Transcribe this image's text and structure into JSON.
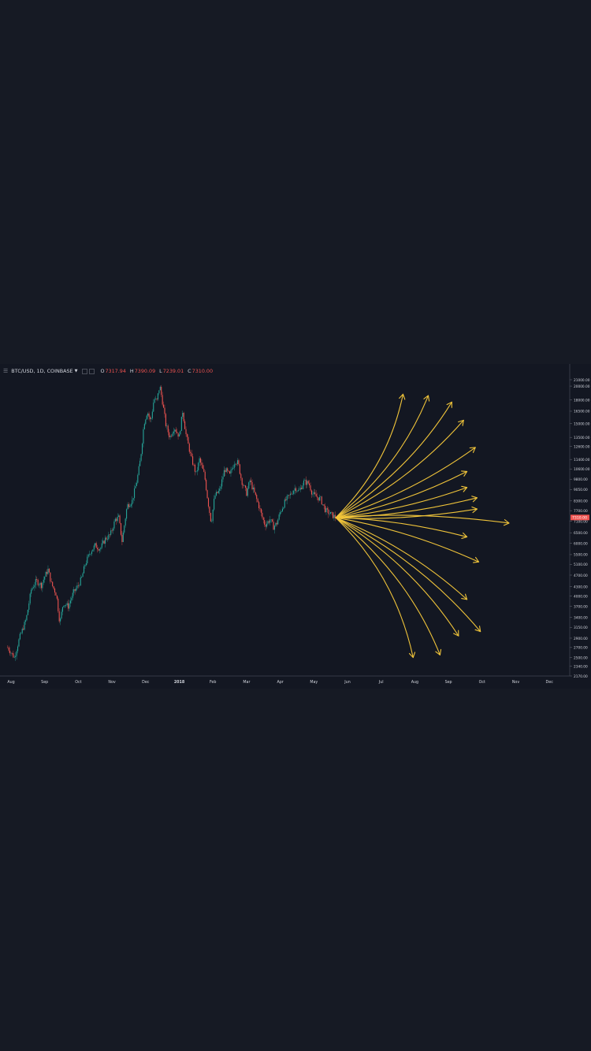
{
  "legend": {
    "symbol": "BTC/USD, 1D, COINBASE",
    "open_label": "O",
    "open": "7317.94",
    "high_label": "H",
    "high": "7390.09",
    "low_label": "L",
    "low": "7239.01",
    "close_label": "C",
    "close": "7310.00"
  },
  "colors": {
    "background": "#131722",
    "page": "#161a24",
    "up": "#26a69a",
    "down": "#ef5350",
    "annotation": "#f0c43a",
    "text": "#d1d4dc"
  },
  "icons": [
    "hamburger-menu-icon",
    "caret-down-icon",
    "square-icon"
  ],
  "chart_data": {
    "type": "candlestick",
    "scale": "log",
    "ylim": [
      2170,
      21000
    ],
    "y_ticks": [
      21000,
      20000,
      18000,
      16500,
      15000,
      13500,
      12600,
      11400,
      10600,
      9800,
      9050,
      8300,
      7700,
      7100,
      6500,
      6000,
      5500,
      5100,
      4700,
      4300,
      4000,
      3700,
      3400,
      3150,
      2900,
      2700,
      2500,
      2340,
      2170
    ],
    "y_tick_labels": [
      "21000.00",
      "20000.00",
      "18000.00",
      "16500.00",
      "15000.00",
      "13500.00",
      "12600.00",
      "11400.00",
      "10600.00",
      "9800.00",
      "9050.00",
      "8300.00",
      "7700.00",
      "7100.00",
      "6500.00",
      "6000.00",
      "5500.00",
      "5100.00",
      "4700.00",
      "4300.00",
      "4000.00",
      "3700.00",
      "3400.00",
      "3150.00",
      "2900.00",
      "2700.00",
      "2500.00",
      "2340.00",
      "2170.00"
    ],
    "last_price_label": "7310.00",
    "last_price": 7310,
    "x_ticks": [
      "Aug",
      "Sep",
      "Oct",
      "Nov",
      "Dec",
      "2018",
      "Feb",
      "Mar",
      "Apr",
      "May",
      "Jun",
      "Jul",
      "Aug",
      "Sep",
      "Oct",
      "Nov",
      "Dec"
    ],
    "x_tick_months": [
      0,
      1,
      2,
      3,
      4,
      5,
      6,
      7,
      8,
      9,
      10,
      11,
      12,
      13,
      14,
      15,
      16
    ],
    "price_path": [
      [
        -0.1,
        2700
      ],
      [
        0.1,
        2500
      ],
      [
        0.25,
        2900
      ],
      [
        0.45,
        3350
      ],
      [
        0.6,
        4200
      ],
      [
        0.75,
        4500
      ],
      [
        0.9,
        4350
      ],
      [
        1.0,
        4650
      ],
      [
        1.1,
        4900
      ],
      [
        1.2,
        4400
      ],
      [
        1.35,
        4050
      ],
      [
        1.45,
        3250
      ],
      [
        1.55,
        3800
      ],
      [
        1.7,
        3700
      ],
      [
        1.85,
        4100
      ],
      [
        2.0,
        4350
      ],
      [
        2.1,
        4600
      ],
      [
        2.2,
        5100
      ],
      [
        2.35,
        5600
      ],
      [
        2.5,
        5900
      ],
      [
        2.65,
        5750
      ],
      [
        2.8,
        6200
      ],
      [
        2.95,
        6400
      ],
      [
        3.1,
        7200
      ],
      [
        3.2,
        7300
      ],
      [
        3.3,
        6100
      ],
      [
        3.45,
        8000
      ],
      [
        3.6,
        8300
      ],
      [
        3.75,
        9800
      ],
      [
        3.85,
        11500
      ],
      [
        3.95,
        15000
      ],
      [
        4.05,
        16500
      ],
      [
        4.15,
        15200
      ],
      [
        4.25,
        18200
      ],
      [
        4.33,
        17800
      ],
      [
        4.42,
        20100
      ],
      [
        4.52,
        17200
      ],
      [
        4.6,
        14900
      ],
      [
        4.72,
        13500
      ],
      [
        4.85,
        14600
      ],
      [
        5.0,
        13600
      ],
      [
        5.1,
        16500
      ],
      [
        5.2,
        13800
      ],
      [
        5.35,
        11600
      ],
      [
        5.5,
        10200
      ],
      [
        5.6,
        11400
      ],
      [
        5.75,
        10100
      ],
      [
        5.85,
        8300
      ],
      [
        5.95,
        7000
      ],
      [
        6.05,
        8600
      ],
      [
        6.2,
        9000
      ],
      [
        6.35,
        10600
      ],
      [
        6.5,
        10100
      ],
      [
        6.65,
        11300
      ],
      [
        6.75,
        11100
      ],
      [
        6.85,
        9700
      ],
      [
        7.0,
        8800
      ],
      [
        7.1,
        9700
      ],
      [
        7.25,
        8700
      ],
      [
        7.35,
        8100
      ],
      [
        7.45,
        7400
      ],
      [
        7.55,
        6900
      ],
      [
        7.7,
        7200
      ],
      [
        7.8,
        6800
      ],
      [
        7.9,
        7000
      ],
      [
        8.0,
        7600
      ],
      [
        8.15,
        8300
      ],
      [
        8.3,
        8700
      ],
      [
        8.45,
        9200
      ],
      [
        8.55,
        8900
      ],
      [
        8.7,
        9600
      ],
      [
        8.85,
        9500
      ],
      [
        8.95,
        8800
      ],
      [
        9.05,
        8600
      ],
      [
        9.2,
        8400
      ],
      [
        9.35,
        7700
      ],
      [
        9.5,
        7500
      ],
      [
        9.65,
        7300
      ]
    ],
    "annotation": {
      "type": "projection-arrows",
      "origin": [
        9.65,
        7300
      ],
      "targets": [
        [
          11.65,
          18800
        ],
        [
          12.4,
          18600
        ],
        [
          13.1,
          17700
        ],
        [
          13.45,
          15400
        ],
        [
          13.8,
          12500
        ],
        [
          13.55,
          10400
        ],
        [
          13.55,
          9200
        ],
        [
          13.85,
          8500
        ],
        [
          13.85,
          7800
        ],
        [
          14.8,
          7000
        ],
        [
          13.55,
          6300
        ],
        [
          13.9,
          5200
        ],
        [
          13.55,
          3900
        ],
        [
          13.95,
          3050
        ],
        [
          13.3,
          2950
        ],
        [
          12.75,
          2550
        ],
        [
          11.95,
          2500
        ]
      ]
    }
  }
}
